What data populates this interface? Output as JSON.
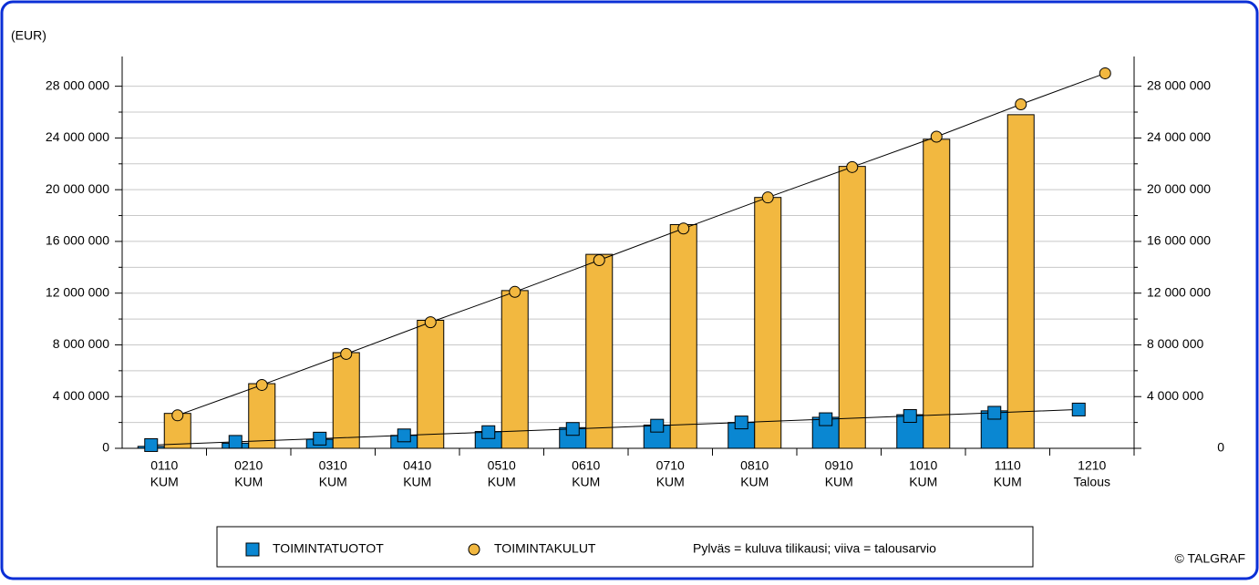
{
  "chart_data": {
    "type": "bar_line",
    "y_label": "(EUR)",
    "categories": [
      [
        "0110",
        "KUM"
      ],
      [
        "0210",
        "KUM"
      ],
      [
        "0310",
        "KUM"
      ],
      [
        "0410",
        "KUM"
      ],
      [
        "0510",
        "KUM"
      ],
      [
        "0610",
        "KUM"
      ],
      [
        "0710",
        "KUM"
      ],
      [
        "0810",
        "KUM"
      ],
      [
        "0910",
        "KUM"
      ],
      [
        "1010",
        "KUM"
      ],
      [
        "1110",
        "KUM"
      ],
      [
        "1210",
        "Talous"
      ]
    ],
    "series": [
      {
        "name": "TOIMINTATUOTOT",
        "color": "#0a87d2",
        "marker": "square",
        "values": [
          150000,
          400000,
          700000,
          1000000,
          1300000,
          1600000,
          1800000,
          2000000,
          2400000,
          2600000,
          2900000,
          null
        ],
        "budget": [
          250000,
          500000,
          750000,
          1000000,
          1250000,
          1500000,
          1750000,
          2000000,
          2250000,
          2500000,
          2750000,
          3000000
        ]
      },
      {
        "name": "TOIMINTAKULUT",
        "color": "#f2b840",
        "marker": "circle",
        "values": [
          2700000,
          5000000,
          7400000,
          9900000,
          12200000,
          15000000,
          17300000,
          19400000,
          21800000,
          23900000,
          25800000,
          null
        ],
        "budget": [
          2550000,
          4900000,
          7300000,
          9750000,
          12100000,
          14550000,
          17000000,
          19400000,
          21750000,
          24100000,
          26600000,
          29000000
        ]
      }
    ],
    "ylim": [
      0,
      30300000
    ],
    "yticks": [
      0,
      {
        "value": 4000000,
        "label": "4 000 000"
      },
      {
        "value": 8000000,
        "label": "8 000 000"
      },
      {
        "value": 12000000,
        "label": "12 000 000"
      },
      {
        "value": 16000000,
        "label": "16 000 000"
      },
      {
        "value": 20000000,
        "label": "20 000 000"
      },
      {
        "value": 24000000,
        "label": "24 000 000"
      },
      {
        "value": 28000000,
        "label": "28 000 000"
      }
    ],
    "minor_yticks": [
      2000000,
      6000000,
      10000000,
      14000000,
      18000000,
      22000000,
      26000000
    ],
    "grid": true,
    "legend_position": "bottom",
    "note": "Pylväs = kuluva tilikausi; viiva  = talousarvio",
    "copyright": "© TALGRAF"
  }
}
